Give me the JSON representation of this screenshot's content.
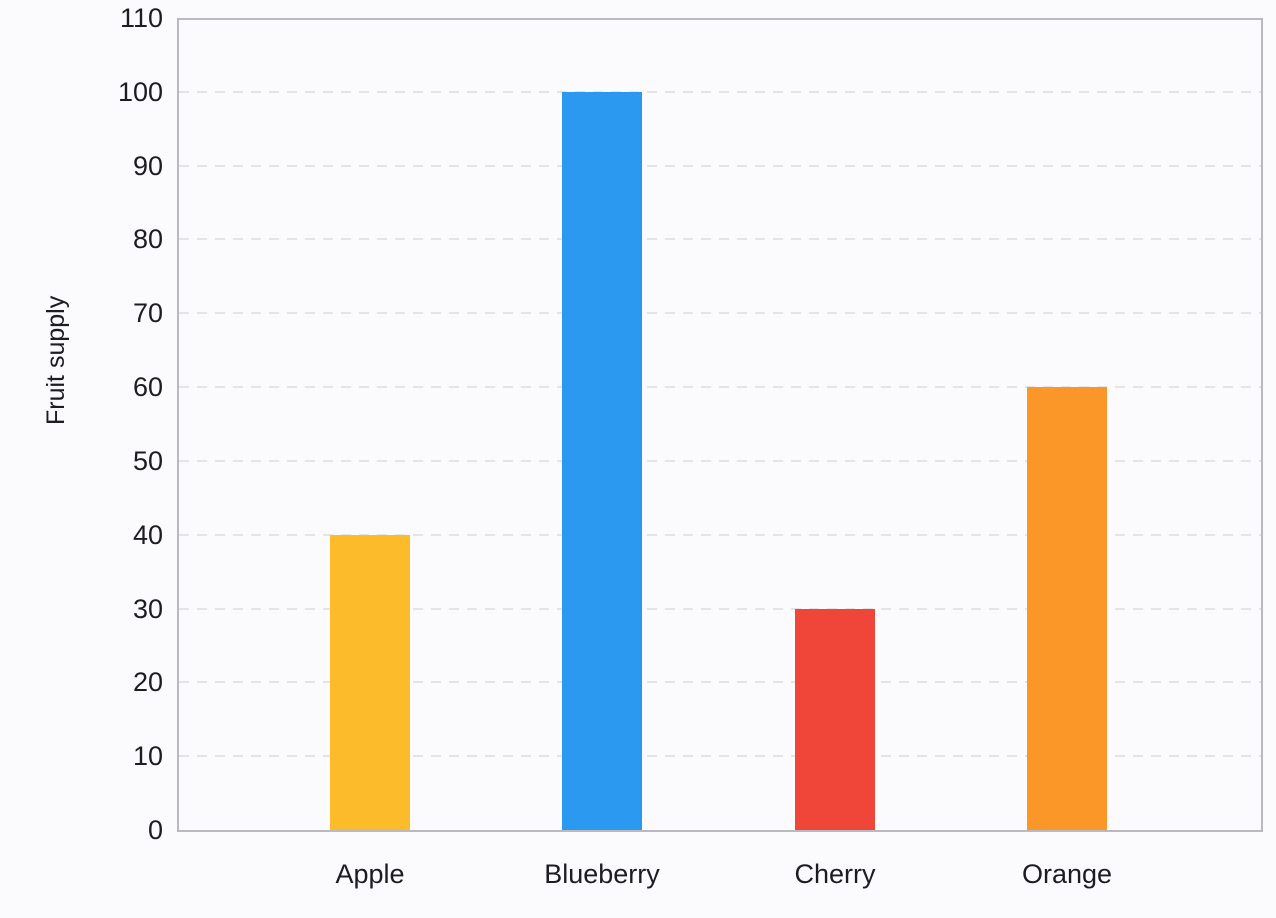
{
  "chart_data": {
    "type": "bar",
    "categories": [
      "Apple",
      "Blueberry",
      "Cherry",
      "Orange"
    ],
    "values": [
      40,
      100,
      30,
      60
    ],
    "bar_colors": [
      "#fcbb2b",
      "#2c99f0",
      "#f04539",
      "#fb9628"
    ],
    "title": "",
    "xlabel": "",
    "ylabel": "Fruit supply",
    "ylim": [
      0,
      110
    ],
    "ytick_step": 10,
    "yticks": [
      0,
      10,
      20,
      30,
      40,
      50,
      60,
      70,
      80,
      90,
      100,
      110
    ],
    "grid": "dashed horizontal",
    "legend": "none",
    "style": {
      "background_color": "#fbfbfe",
      "plot_border_color": "#b9b9be",
      "grid_color": "#e3e3e8",
      "text_color": "#1c1c21"
    }
  }
}
